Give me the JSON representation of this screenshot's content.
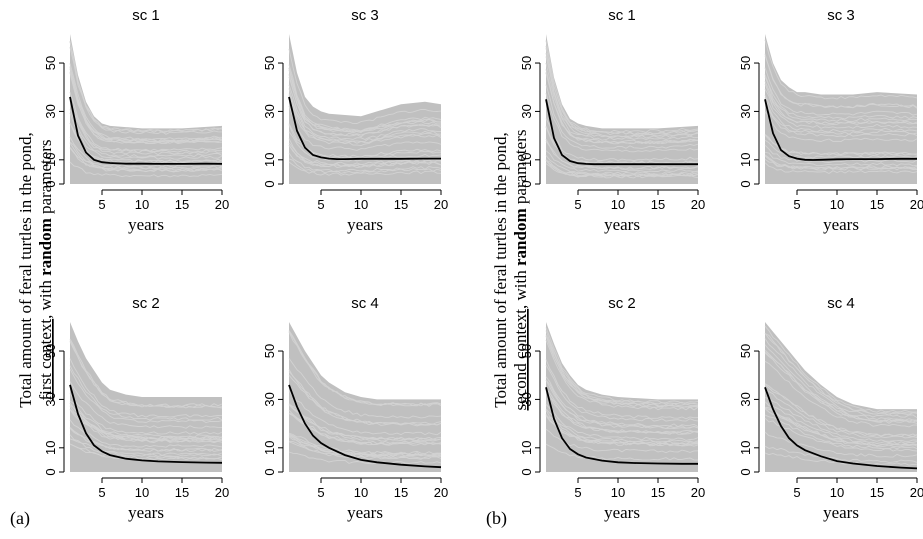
{
  "panels": [
    {
      "label": "(a)",
      "ylabel_line1": "Total amount of feral turtles in the pond,",
      "ylabel_line2_context": "first context",
      "ylabel_line2_mid": ", with ",
      "ylabel_line2_random": "random",
      "ylabel_line2_end": " parameters"
    },
    {
      "label": "(b)",
      "ylabel_line1": "Total amount of feral turtles in the pond,",
      "ylabel_line2_context": "second context",
      "ylabel_line2_mid": ", with ",
      "ylabel_line2_random": "random",
      "ylabel_line2_end": " parameters"
    }
  ],
  "chart_data": [
    {
      "panel": "a",
      "type": "line",
      "title": "sc 1",
      "xlabel": "years",
      "xlim": [
        1,
        20
      ],
      "ylim": [
        0,
        62
      ],
      "xticks": [
        5,
        10,
        15,
        20
      ],
      "yticks": [
        0,
        10,
        30,
        50
      ],
      "series": [
        {
          "color": "#000000",
          "x": [
            1,
            2,
            3,
            4,
            5,
            6,
            7,
            8,
            10,
            12,
            15,
            18,
            20
          ],
          "values": [
            36,
            20,
            13,
            10,
            9,
            8.7,
            8.5,
            8.4,
            8.4,
            8.3,
            8.3,
            8.4,
            8.3
          ]
        }
      ],
      "envelope": {
        "color": "#c0c0c0",
        "x": [
          1,
          2,
          3,
          4,
          5,
          6,
          8,
          10,
          15,
          20
        ],
        "upper": [
          62,
          45,
          34,
          28,
          25,
          24,
          23.5,
          23,
          23,
          24
        ],
        "lower": [
          0,
          0,
          0,
          0,
          0,
          0,
          0,
          0,
          0,
          0
        ]
      }
    },
    {
      "panel": "a",
      "type": "line",
      "title": "sc 3",
      "xlabel": "years",
      "xlim": [
        1,
        20
      ],
      "ylim": [
        0,
        62
      ],
      "xticks": [
        5,
        10,
        15,
        20
      ],
      "yticks": [
        0,
        10,
        30,
        50
      ],
      "series": [
        {
          "color": "#000000",
          "x": [
            1,
            2,
            3,
            4,
            5,
            6,
            7,
            8,
            10,
            12,
            15,
            18,
            20
          ],
          "values": [
            36,
            22,
            15,
            12,
            11,
            10.5,
            10.3,
            10.3,
            10.4,
            10.4,
            10.4,
            10.5,
            10.5
          ]
        }
      ],
      "envelope": {
        "color": "#c0c0c0",
        "x": [
          1,
          2,
          3,
          4,
          5,
          6,
          8,
          10,
          12,
          15,
          18,
          20
        ],
        "upper": [
          62,
          46,
          36,
          32,
          30,
          29,
          28.5,
          28,
          30,
          33,
          34,
          33
        ],
        "lower": [
          0,
          0,
          0,
          0,
          0,
          0,
          0,
          0,
          0,
          0,
          0,
          0
        ]
      }
    },
    {
      "panel": "a",
      "type": "line",
      "title": "sc 2",
      "xlabel": "years",
      "xlim": [
        1,
        20
      ],
      "ylim": [
        0,
        62
      ],
      "xticks": [
        5,
        10,
        15,
        20
      ],
      "yticks": [
        0,
        10,
        30,
        50
      ],
      "series": [
        {
          "color": "#000000",
          "x": [
            1,
            2,
            3,
            4,
            5,
            6,
            8,
            10,
            12,
            15,
            18,
            20
          ],
          "values": [
            36,
            24,
            16,
            11,
            8.5,
            7,
            5.5,
            4.8,
            4.4,
            4.1,
            3.9,
            3.8
          ]
        }
      ],
      "envelope": {
        "color": "#c0c0c0",
        "x": [
          1,
          2,
          3,
          4,
          5,
          6,
          8,
          10,
          15,
          20
        ],
        "upper": [
          62,
          54,
          47,
          42,
          37,
          34,
          32,
          31,
          31,
          31
        ],
        "lower": [
          0,
          0,
          0,
          0,
          0,
          0,
          0,
          0,
          0,
          0
        ]
      }
    },
    {
      "panel": "a",
      "type": "line",
      "title": "sc 4",
      "xlabel": "years",
      "xlim": [
        1,
        20
      ],
      "ylim": [
        0,
        62
      ],
      "xticks": [
        5,
        10,
        15,
        20
      ],
      "yticks": [
        0,
        10,
        30,
        50
      ],
      "series": [
        {
          "color": "#000000",
          "x": [
            1,
            2,
            3,
            4,
            5,
            6,
            8,
            10,
            12,
            15,
            18,
            20
          ],
          "values": [
            36,
            27,
            20,
            15,
            12,
            10,
            7,
            5,
            4,
            3,
            2.3,
            2
          ]
        }
      ],
      "envelope": {
        "color": "#c0c0c0",
        "x": [
          1,
          2,
          3,
          4,
          5,
          6,
          8,
          10,
          12,
          15,
          20
        ],
        "upper": [
          62,
          56,
          50,
          45,
          40,
          37,
          33,
          31,
          30,
          30,
          30
        ],
        "lower": [
          0,
          0,
          0,
          0,
          0,
          0,
          0,
          0,
          0,
          0,
          0
        ]
      }
    },
    {
      "panel": "b",
      "type": "line",
      "title": "sc 1",
      "xlabel": "years",
      "xlim": [
        1,
        20
      ],
      "ylim": [
        0,
        62
      ],
      "xticks": [
        5,
        10,
        15,
        20
      ],
      "yticks": [
        0,
        10,
        30,
        50
      ],
      "series": [
        {
          "color": "#000000",
          "x": [
            1,
            2,
            3,
            4,
            5,
            6,
            7,
            8,
            10,
            12,
            15,
            18,
            20
          ],
          "values": [
            35,
            19,
            12,
            9.5,
            8.6,
            8.3,
            8.2,
            8.2,
            8.2,
            8.2,
            8.2,
            8.2,
            8.2
          ]
        }
      ],
      "envelope": {
        "color": "#c0c0c0",
        "x": [
          1,
          2,
          3,
          4,
          5,
          6,
          8,
          10,
          15,
          20
        ],
        "upper": [
          62,
          44,
          33,
          27,
          25,
          24,
          23,
          23,
          23,
          24
        ],
        "lower": [
          0,
          0,
          0,
          0,
          0,
          0,
          0,
          0,
          0,
          0
        ]
      }
    },
    {
      "panel": "b",
      "type": "line",
      "title": "sc 3",
      "xlabel": "years",
      "xlim": [
        1,
        20
      ],
      "ylim": [
        0,
        62
      ],
      "xticks": [
        5,
        10,
        15,
        20
      ],
      "yticks": [
        0,
        10,
        30,
        50
      ],
      "series": [
        {
          "color": "#000000",
          "x": [
            1,
            2,
            3,
            4,
            5,
            6,
            7,
            8,
            10,
            12,
            15,
            18,
            20
          ],
          "values": [
            35,
            21,
            14,
            11.5,
            10.5,
            10,
            9.9,
            10,
            10.2,
            10.3,
            10.3,
            10.4,
            10.4
          ]
        }
      ],
      "envelope": {
        "color": "#c0c0c0",
        "x": [
          1,
          2,
          3,
          4,
          5,
          6,
          8,
          10,
          12,
          15,
          20
        ],
        "upper": [
          62,
          50,
          43,
          40,
          38,
          38,
          37,
          37,
          37,
          38,
          37
        ],
        "lower": [
          0,
          0,
          0,
          0,
          0,
          0,
          0,
          0,
          0,
          0,
          0
        ]
      }
    },
    {
      "panel": "b",
      "type": "line",
      "title": "sc 2",
      "xlabel": "years",
      "xlim": [
        1,
        20
      ],
      "ylim": [
        0,
        62
      ],
      "xticks": [
        5,
        10,
        15,
        20
      ],
      "yticks": [
        0,
        10,
        30,
        50
      ],
      "series": [
        {
          "color": "#000000",
          "x": [
            1,
            2,
            3,
            4,
            5,
            6,
            8,
            10,
            12,
            15,
            18,
            20
          ],
          "values": [
            35,
            22,
            14,
            9.5,
            7.3,
            6,
            4.7,
            4,
            3.7,
            3.5,
            3.4,
            3.4
          ]
        }
      ],
      "envelope": {
        "color": "#c0c0c0",
        "x": [
          1,
          2,
          3,
          4,
          5,
          6,
          8,
          10,
          15,
          20
        ],
        "upper": [
          62,
          53,
          45,
          40,
          36,
          34,
          32,
          31,
          30,
          30
        ],
        "lower": [
          0,
          0,
          0,
          0,
          0,
          0,
          0,
          0,
          0,
          0
        ]
      }
    },
    {
      "panel": "b",
      "type": "line",
      "title": "sc 4",
      "xlabel": "years",
      "xlim": [
        1,
        20
      ],
      "ylim": [
        0,
        62
      ],
      "xticks": [
        5,
        10,
        15,
        20
      ],
      "yticks": [
        0,
        10,
        30,
        50
      ],
      "series": [
        {
          "color": "#000000",
          "x": [
            1,
            2,
            3,
            4,
            5,
            6,
            8,
            10,
            12,
            15,
            18,
            20
          ],
          "values": [
            35,
            26,
            19,
            14,
            11,
            9,
            6.5,
            4.5,
            3.5,
            2.5,
            1.8,
            1.5
          ]
        }
      ],
      "envelope": {
        "color": "#c0c0c0",
        "x": [
          1,
          2,
          3,
          4,
          5,
          6,
          8,
          10,
          12,
          15,
          20
        ],
        "upper": [
          62,
          58,
          54,
          50,
          46,
          42,
          36,
          31,
          28,
          26,
          26
        ],
        "lower": [
          0,
          0,
          0,
          0,
          0,
          0,
          0,
          0,
          0,
          0,
          0
        ]
      }
    }
  ]
}
